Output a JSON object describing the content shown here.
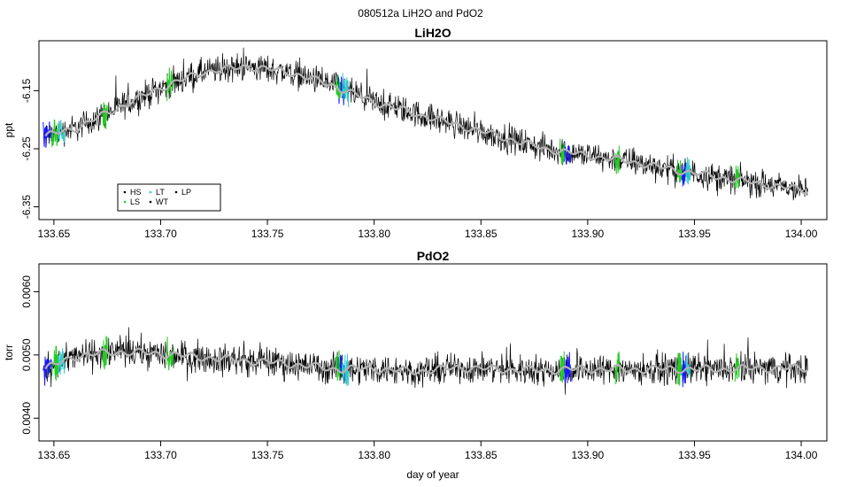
{
  "figure_title": "080512a   LiH2O and PdO2",
  "colors": {
    "HS": "#1a1aff",
    "LS": "#22cc22",
    "LT": "#33cccc",
    "WT": "#000000",
    "LP": "#000000",
    "raw": "#000000",
    "smooth": "#b3b3b3"
  },
  "chart_data": [
    {
      "type": "line",
      "title": "LiH2O",
      "xlabel": "",
      "ylabel": "ppt",
      "xlim": [
        133.643,
        134.012
      ],
      "ylim": [
        -6.372,
        -6.064
      ],
      "xticks": [
        "133.65",
        "133.70",
        "133.75",
        "133.80",
        "133.85",
        "133.90",
        "133.95",
        "134.00"
      ],
      "yticks": [
        "-6.15",
        "-6.25",
        "-6.35"
      ],
      "legend": {
        "placement": "bottom-left",
        "entries": [
          "HS",
          "LS",
          "LT",
          "WT",
          "LP"
        ]
      },
      "series": [
        {
          "name": "WT",
          "smooth_x": [
            133.646,
            133.66,
            133.68,
            133.7,
            133.72,
            133.74,
            133.76,
            133.78,
            133.8,
            133.82,
            133.84,
            133.86,
            133.88,
            133.9,
            133.92,
            133.94,
            133.96,
            133.98,
            134.003
          ],
          "smooth_y": [
            -6.228,
            -6.215,
            -6.18,
            -6.145,
            -6.118,
            -6.108,
            -6.118,
            -6.14,
            -6.17,
            -6.19,
            -6.21,
            -6.23,
            -6.25,
            -6.262,
            -6.272,
            -6.286,
            -6.298,
            -6.31,
            -6.322
          ],
          "noise_halfwidth": 0.035
        },
        {
          "name": "HS",
          "x_ranges": [
            [
              133.645,
              133.649
            ],
            [
              133.783,
              133.786
            ],
            [
              133.889,
              133.892
            ],
            [
              133.944,
              133.946
            ]
          ]
        },
        {
          "name": "LS",
          "x_ranges": [
            [
              133.649,
              133.652
            ],
            [
              133.673,
              133.675
            ],
            [
              133.703,
              133.706
            ],
            [
              133.782,
              133.784
            ],
            [
              133.887,
              133.889
            ],
            [
              133.913,
              133.915
            ],
            [
              133.942,
              133.944
            ],
            [
              133.969,
              133.971
            ]
          ]
        },
        {
          "name": "LT",
          "x_ranges": [
            [
              133.652,
              133.655
            ],
            [
              133.785,
              133.788
            ],
            [
              133.946,
              133.948
            ]
          ]
        }
      ]
    },
    {
      "type": "line",
      "title": "PdO2",
      "xlabel": "day of year",
      "ylabel": "torr",
      "xlim": [
        133.643,
        134.012
      ],
      "ylim": [
        0.00364,
        0.00644
      ],
      "xticks": [
        "133.65",
        "133.70",
        "133.75",
        "133.80",
        "133.85",
        "133.90",
        "133.95",
        "134.00"
      ],
      "yticks": [
        "0.0040",
        "0.0050",
        "0.0060"
      ],
      "series": [
        {
          "name": "WT",
          "smooth_x": [
            133.646,
            133.66,
            133.68,
            133.7,
            133.72,
            133.74,
            133.76,
            133.78,
            133.8,
            133.82,
            133.84,
            133.86,
            133.88,
            133.9,
            133.92,
            133.94,
            133.96,
            133.98,
            134.003
          ],
          "smooth_y": [
            0.00478,
            0.00498,
            0.00505,
            0.00502,
            0.00496,
            0.00491,
            0.00486,
            0.00478,
            0.00478,
            0.00474,
            0.0048,
            0.00477,
            0.00476,
            0.00478,
            0.00477,
            0.00478,
            0.00477,
            0.00479,
            0.00479
          ],
          "noise_halfwidth": 0.00035
        },
        {
          "name": "HS",
          "x_ranges": [
            [
              133.645,
              133.649
            ],
            [
              133.783,
              133.786
            ],
            [
              133.889,
              133.892
            ],
            [
              133.944,
              133.946
            ]
          ]
        },
        {
          "name": "LS",
          "x_ranges": [
            [
              133.649,
              133.652
            ],
            [
              133.673,
              133.675
            ],
            [
              133.703,
              133.706
            ],
            [
              133.782,
              133.784
            ],
            [
              133.887,
              133.889
            ],
            [
              133.913,
              133.915
            ],
            [
              133.942,
              133.944
            ],
            [
              133.969,
              133.971
            ]
          ]
        },
        {
          "name": "LT",
          "x_ranges": [
            [
              133.652,
              133.655
            ],
            [
              133.785,
              133.788
            ],
            [
              133.946,
              133.948
            ]
          ]
        }
      ]
    }
  ]
}
